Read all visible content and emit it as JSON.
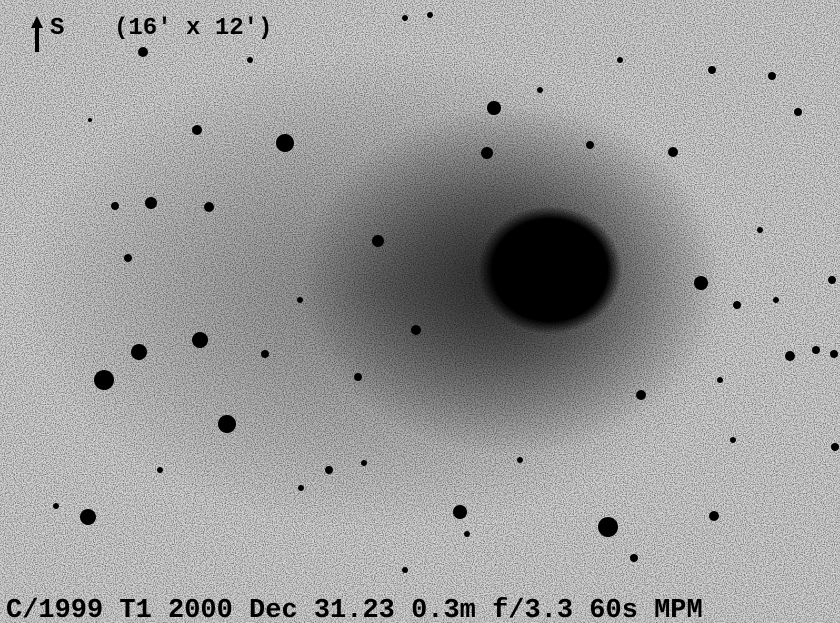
{
  "image": {
    "orientation_label": "S",
    "field_size": "(16' x 12')",
    "caption": "C/1999 T1 2000 Dec 31.23 0.3m f/3.3 60s MPM"
  }
}
